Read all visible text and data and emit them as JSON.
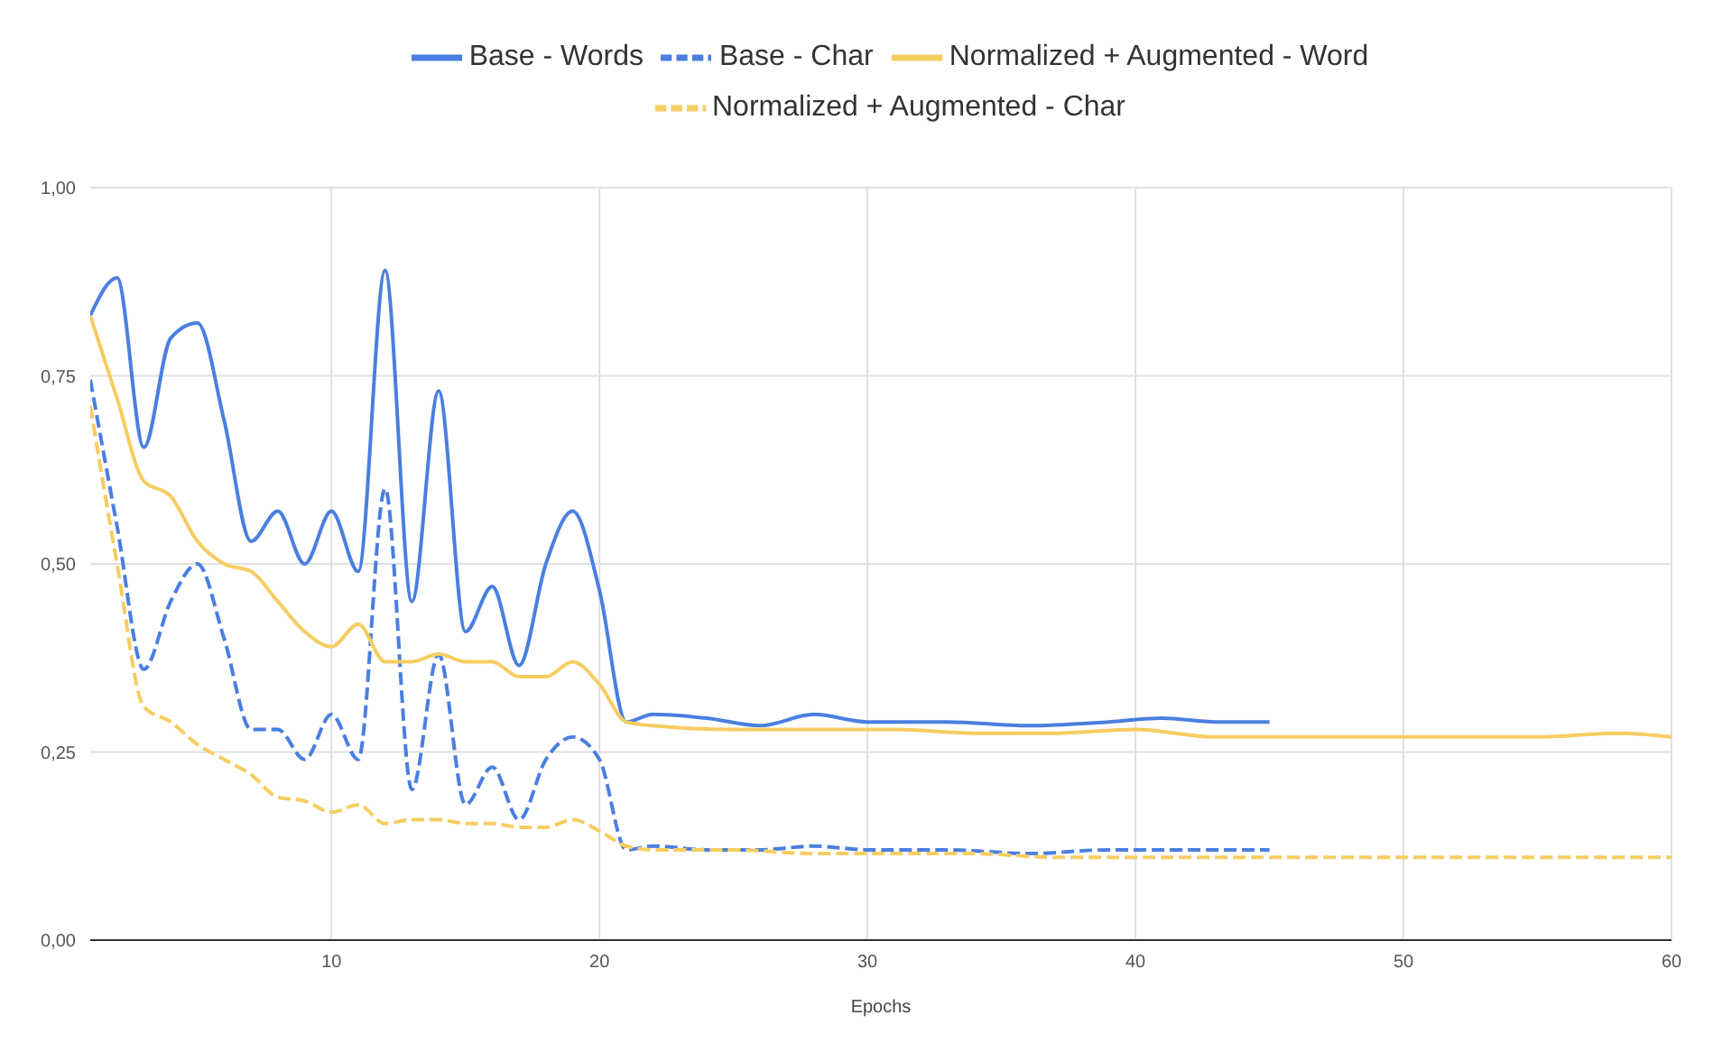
{
  "chart_data": {
    "type": "line",
    "xlabel": "Epochs",
    "xlim": [
      1,
      60
    ],
    "xticks": [
      10,
      20,
      30,
      40,
      50,
      60
    ],
    "ylim": [
      0,
      1
    ],
    "yticks": [
      {
        "value": 0,
        "label": "0,00"
      },
      {
        "value": 0.25,
        "label": "0,25"
      },
      {
        "value": 0.5,
        "label": "0,50"
      },
      {
        "value": 0.75,
        "label": "0,75"
      },
      {
        "value": 1,
        "label": "1,00"
      }
    ],
    "grid": true,
    "legend": "top",
    "marker": "none",
    "series": [
      {
        "name": "Base - Words",
        "color": "#4a7fe0",
        "line_style": "solid",
        "x": [
          1,
          2,
          3,
          4,
          5,
          6,
          7,
          8,
          9,
          10,
          11,
          12,
          13,
          14,
          15,
          16,
          17,
          18,
          19,
          20,
          21,
          22,
          24,
          26,
          28,
          30,
          33,
          36,
          39,
          41,
          43,
          45
        ],
        "values": [
          0.83,
          0.88,
          0.655,
          0.8,
          0.82,
          0.69,
          0.53,
          0.57,
          0.5,
          0.57,
          0.49,
          0.89,
          0.45,
          0.73,
          0.41,
          0.47,
          0.365,
          0.5,
          0.57,
          0.465,
          0.29,
          0.3,
          0.295,
          0.285,
          0.3,
          0.29,
          0.29,
          0.285,
          0.29,
          0.295,
          0.29,
          0.29
        ]
      },
      {
        "name": "Base - Char",
        "color": "#4a7fe0",
        "line_style": "dashed",
        "x": [
          1,
          2,
          3,
          4,
          5,
          6,
          7,
          8,
          9,
          10,
          11,
          12,
          13,
          14,
          15,
          16,
          17,
          18,
          19,
          20,
          21,
          22,
          24,
          26,
          28,
          30,
          33,
          36,
          39,
          41,
          43,
          45
        ],
        "values": [
          0.745,
          0.55,
          0.36,
          0.45,
          0.5,
          0.4,
          0.28,
          0.28,
          0.24,
          0.3,
          0.24,
          0.6,
          0.2,
          0.38,
          0.18,
          0.23,
          0.16,
          0.24,
          0.27,
          0.24,
          0.12,
          0.125,
          0.12,
          0.12,
          0.125,
          0.12,
          0.12,
          0.115,
          0.12,
          0.12,
          0.12,
          0.12
        ]
      },
      {
        "name": "Normalized + Augmented - Word",
        "color": "#f6cd61",
        "line_style": "solid",
        "x": [
          1,
          2,
          3,
          4,
          5,
          6,
          7,
          8,
          9,
          10,
          11,
          12,
          13,
          14,
          15,
          16,
          17,
          18,
          19,
          20,
          21,
          22,
          25,
          28,
          31,
          34,
          37,
          40,
          43,
          46,
          49,
          52,
          55,
          58,
          60
        ],
        "values": [
          0.83,
          0.72,
          0.61,
          0.59,
          0.53,
          0.5,
          0.49,
          0.45,
          0.41,
          0.39,
          0.42,
          0.37,
          0.37,
          0.38,
          0.37,
          0.37,
          0.35,
          0.35,
          0.37,
          0.34,
          0.29,
          0.285,
          0.28,
          0.28,
          0.28,
          0.275,
          0.275,
          0.28,
          0.27,
          0.27,
          0.27,
          0.27,
          0.27,
          0.275,
          0.27
        ]
      },
      {
        "name": "Normalized + Augmented - Char",
        "color": "#f6cd61",
        "line_style": "dashed",
        "x": [
          1,
          2,
          3,
          4,
          5,
          6,
          7,
          8,
          9,
          10,
          11,
          12,
          13,
          14,
          15,
          16,
          17,
          18,
          19,
          20,
          21,
          22,
          25,
          28,
          31,
          34,
          37,
          40,
          43,
          46,
          49,
          52,
          55,
          58,
          60
        ],
        "values": [
          0.71,
          0.5,
          0.31,
          0.29,
          0.26,
          0.24,
          0.22,
          0.19,
          0.185,
          0.17,
          0.18,
          0.155,
          0.16,
          0.16,
          0.155,
          0.155,
          0.15,
          0.15,
          0.16,
          0.145,
          0.125,
          0.12,
          0.12,
          0.115,
          0.115,
          0.115,
          0.11,
          0.11,
          0.11,
          0.11,
          0.11,
          0.11,
          0.11,
          0.11,
          0.11
        ]
      }
    ]
  }
}
